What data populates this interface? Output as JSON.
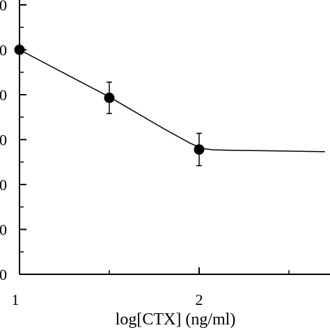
{
  "chart_data": {
    "type": "line",
    "title": "",
    "xlabel": "log[CTX] (ng/ml)",
    "ylabel": "",
    "x_ticks": [
      1,
      2
    ],
    "x_tick_labels": [
      "1",
      "2"
    ],
    "xlim": [
      1,
      2.7
    ],
    "ylim": [
      0,
      6
    ],
    "y_ticks": [
      0,
      1,
      2,
      3,
      4,
      5,
      6
    ],
    "y_tick_labels": [
      "0",
      "0",
      "0",
      "0",
      "0",
      "0",
      "0"
    ],
    "grid": false,
    "legend": "none",
    "series": [
      {
        "x": [
          1,
          1.5,
          2
        ],
        "y": [
          5.0,
          3.93,
          2.78
        ],
        "err": [
          0,
          0.35,
          0.36
        ],
        "marker": "filled-circle",
        "color": "#000000"
      }
    ],
    "fit_curve": {
      "x": [
        1,
        1.5,
        1.8,
        1.95,
        2.02,
        2.08,
        2.2,
        2.4,
        2.7
      ],
      "y": [
        5.0,
        3.95,
        3.25,
        2.92,
        2.8,
        2.77,
        2.76,
        2.75,
        2.73
      ],
      "color": "#000000"
    }
  }
}
